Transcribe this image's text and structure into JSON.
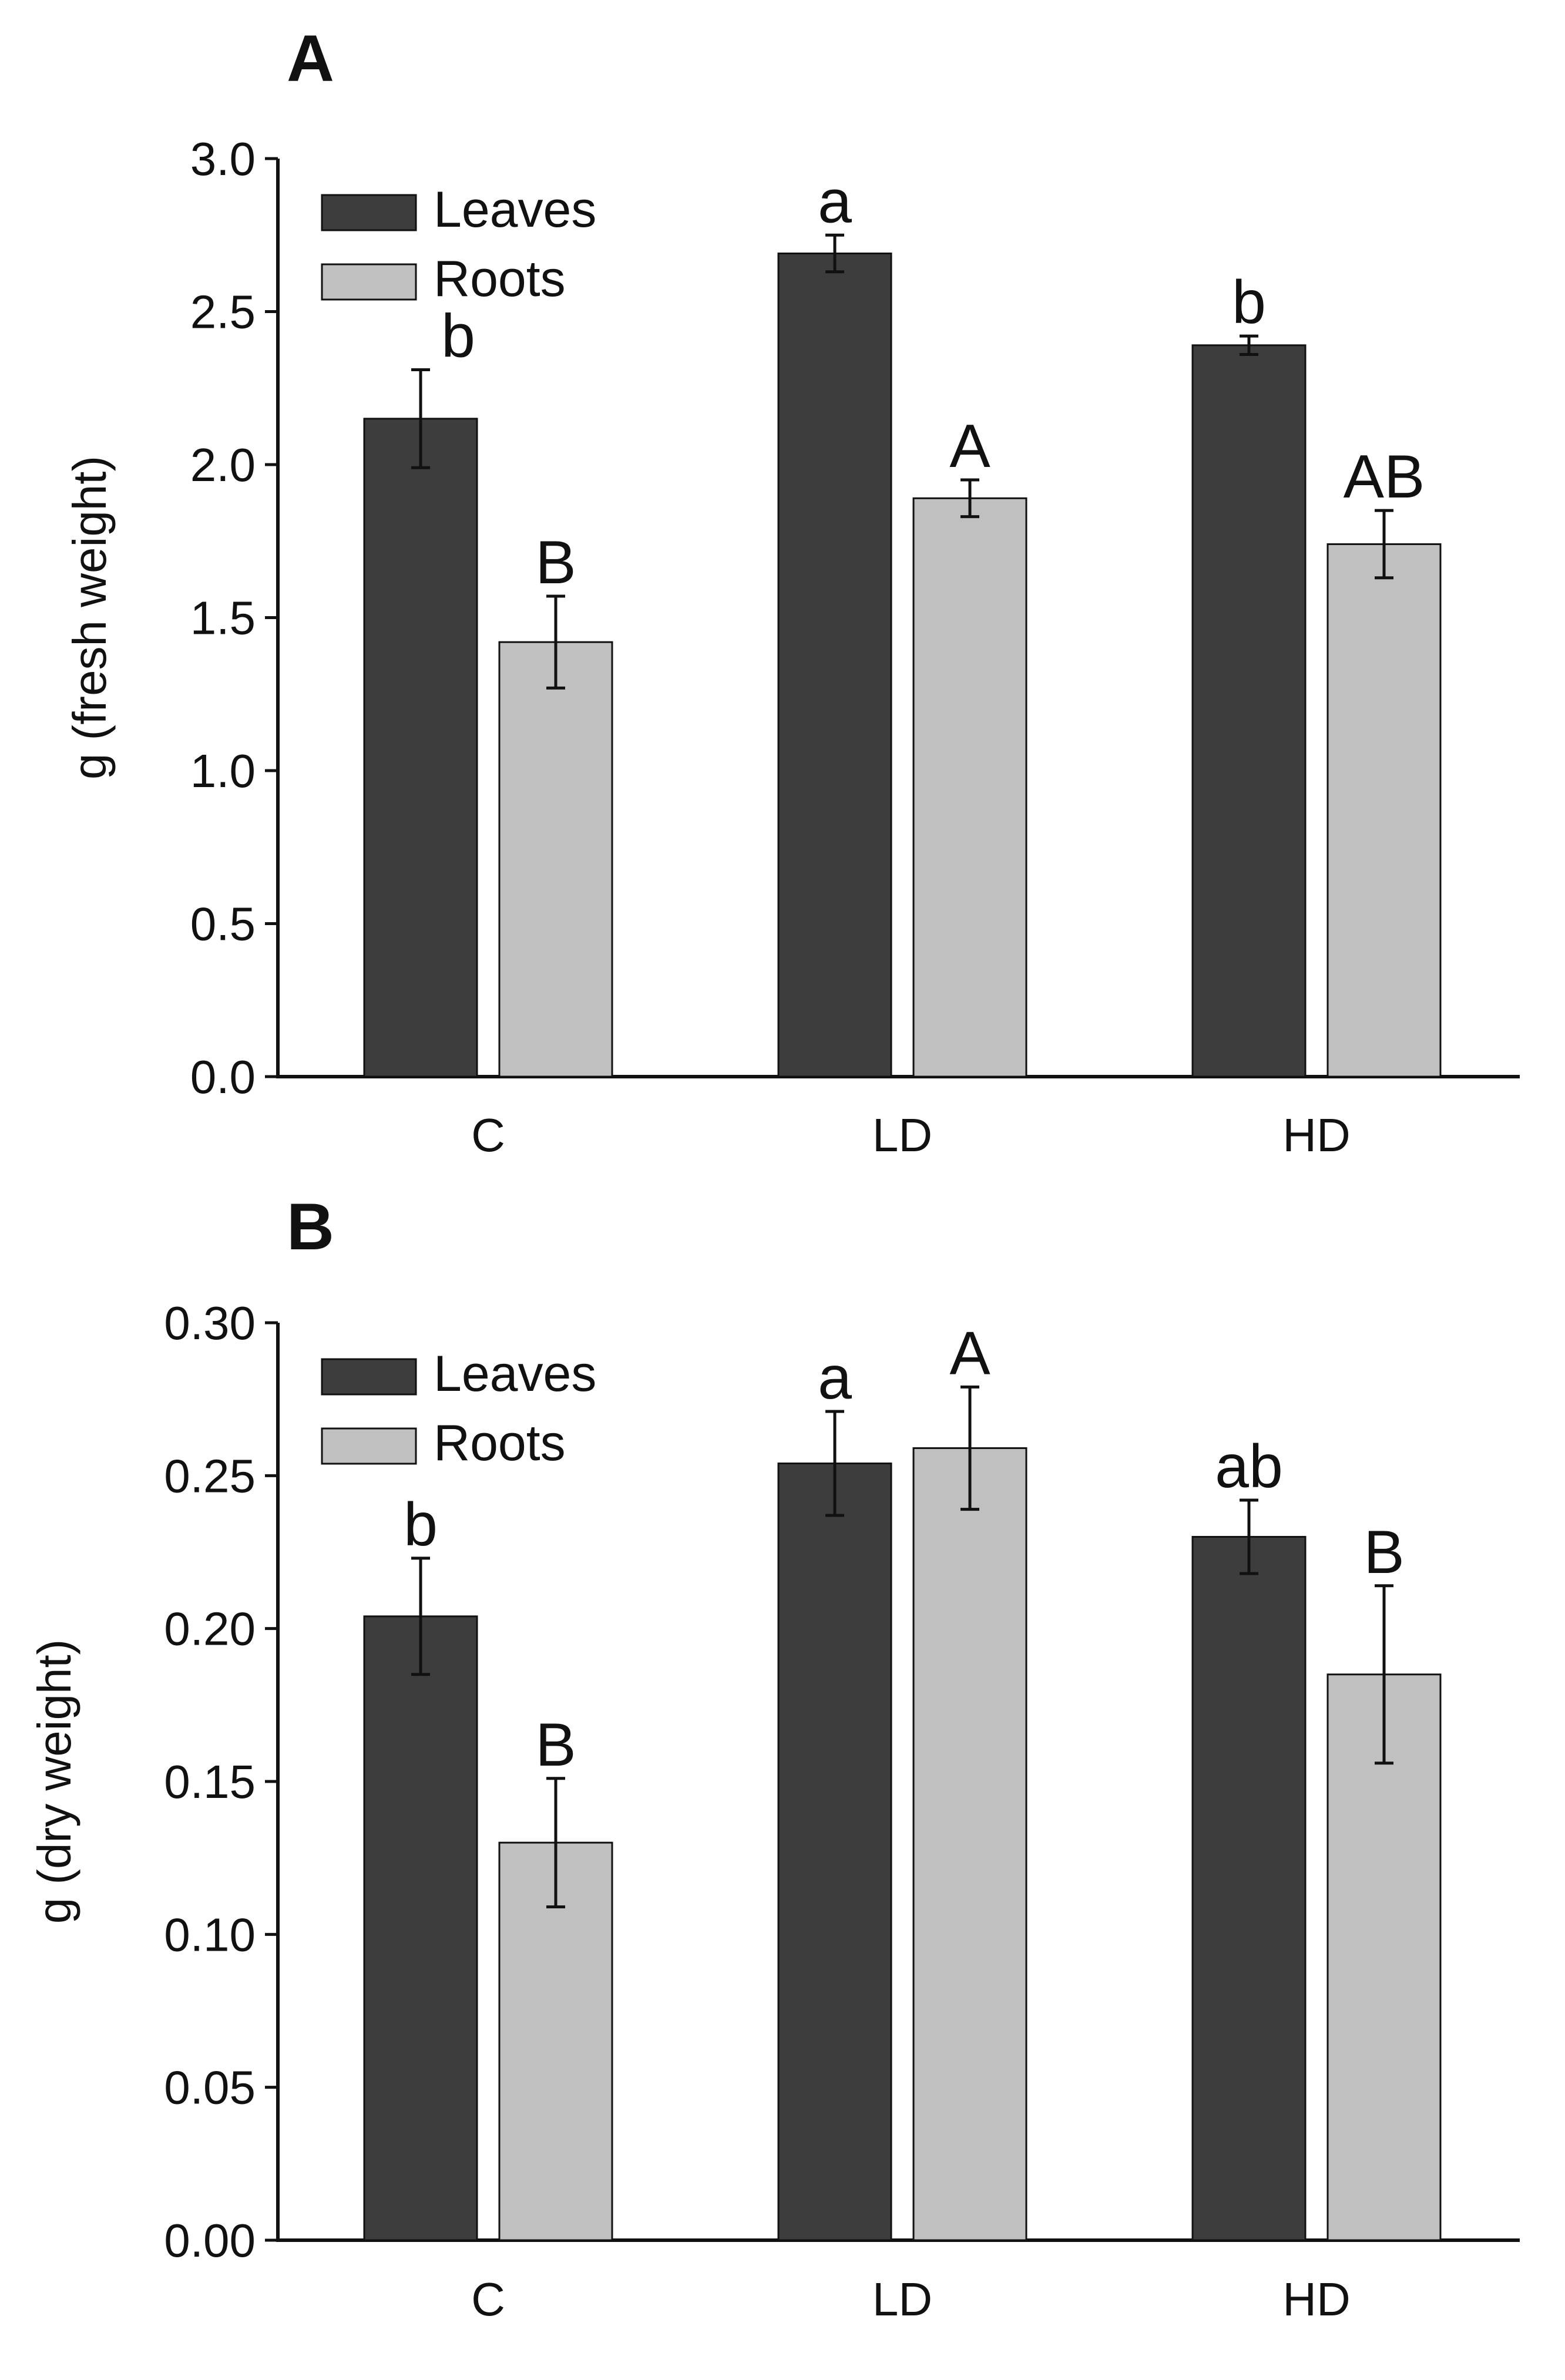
{
  "chart_data": [
    {
      "type": "bar",
      "panel": "A",
      "categories": [
        "C",
        "LD",
        "HD"
      ],
      "ylabel": "g (fresh weight)",
      "ylim": [
        0,
        3.0
      ],
      "yticks": [
        "0.0",
        "0.5",
        "1.0",
        "1.5",
        "2.0",
        "2.5",
        "3.0"
      ],
      "legend": "top-left",
      "series": [
        {
          "name": "Leaves",
          "color": "#3d3d3d",
          "values": [
            2.15,
            2.69,
            2.39
          ],
          "errors": [
            0.16,
            0.06,
            0.03
          ],
          "labels": [
            "b",
            "a",
            "b"
          ]
        },
        {
          "name": "Roots",
          "color": "#c0c0c0",
          "values": [
            1.42,
            1.89,
            1.74
          ],
          "errors": [
            0.15,
            0.06,
            0.11
          ],
          "labels": [
            "B",
            "A",
            "AB"
          ]
        }
      ]
    },
    {
      "type": "bar",
      "panel": "B",
      "categories": [
        "C",
        "LD",
        "HD"
      ],
      "ylabel": "g (dry weight)",
      "ylim": [
        0,
        0.3
      ],
      "yticks": [
        "0.00",
        "0.05",
        "0.10",
        "0.15",
        "0.20",
        "0.25",
        "0.30"
      ],
      "legend": "top-left",
      "series": [
        {
          "name": "Leaves",
          "color": "#3d3d3d",
          "values": [
            0.204,
            0.254,
            0.23
          ],
          "errors": [
            0.019,
            0.017,
            0.012
          ],
          "labels": [
            "b",
            "a",
            "ab"
          ]
        },
        {
          "name": "Roots",
          "color": "#c0c0c0",
          "values": [
            0.13,
            0.259,
            0.185
          ],
          "errors": [
            0.021,
            0.02,
            0.029
          ],
          "labels": [
            "B",
            "A",
            "B"
          ]
        }
      ]
    }
  ]
}
